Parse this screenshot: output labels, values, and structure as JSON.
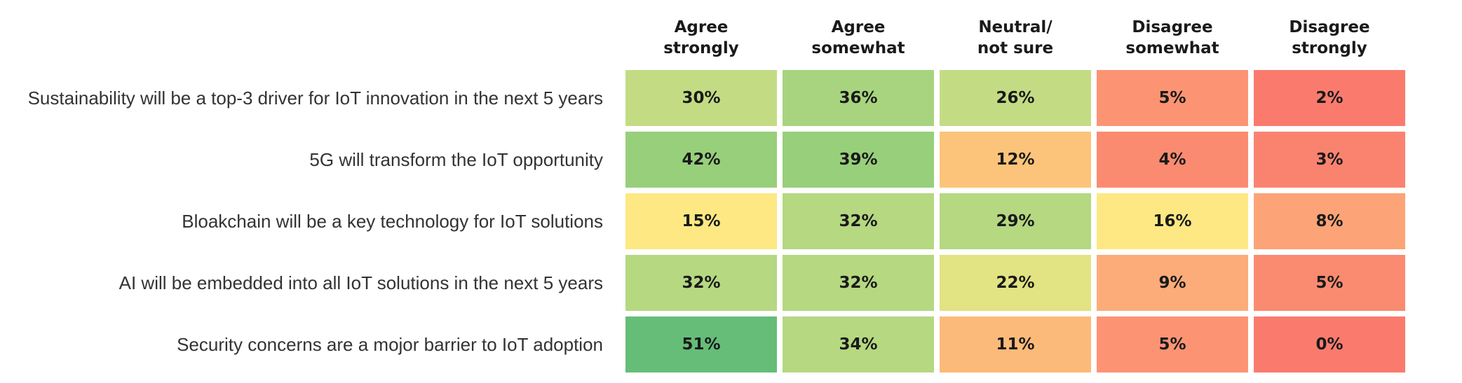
{
  "chart_data": {
    "type": "heatmap",
    "columns": [
      "Agree\nstrongly",
      "Agree\nsomewhat",
      "Neutral/\nnot sure",
      "Disagree\nsomewhat",
      "Disagree\nstrongly"
    ],
    "rows": [
      "Sustainability will be a top-3 driver for IoT innovation in the next 5 years",
      "5G will transform the IoT opportunity",
      "Bloakchain will be a key technology for IoT solutions",
      "AI will be embedded into all IoT solutions in the next 5 years",
      "Security concerns are a mojor barrier to IoT adoption"
    ],
    "values": [
      [
        30,
        36,
        26,
        5,
        2
      ],
      [
        42,
        39,
        12,
        4,
        3
      ],
      [
        15,
        32,
        29,
        16,
        8
      ],
      [
        32,
        32,
        22,
        9,
        5
      ],
      [
        51,
        34,
        11,
        5,
        0
      ]
    ],
    "labels": [
      [
        "30%",
        "36%",
        "26%",
        "5%",
        "2%"
      ],
      [
        "42%",
        "39%",
        "12%",
        "4%",
        "3%"
      ],
      [
        "15%",
        "32%",
        "29%",
        "16%",
        "8%"
      ],
      [
        "32%",
        "32%",
        "22%",
        "9%",
        "5%"
      ],
      [
        "51%",
        "34%",
        "11%",
        "5%",
        "0%"
      ]
    ],
    "colors": [
      [
        "#c3dc84",
        "#a8d47f",
        "#c3dc84",
        "#fc9473",
        "#fa7b6d"
      ],
      [
        "#98cf7b",
        "#98cf7b",
        "#fcc47a",
        "#fb8b70",
        "#fa8370"
      ],
      [
        "#fde883",
        "#b5d881",
        "#b5d881",
        "#fde883",
        "#fca477"
      ],
      [
        "#b5d881",
        "#b5d881",
        "#e2e383",
        "#fcac79",
        "#fb8b70"
      ],
      [
        "#65bd78",
        "#b5d881",
        "#fcba7a",
        "#fc9473",
        "#fa7b6d"
      ]
    ]
  }
}
